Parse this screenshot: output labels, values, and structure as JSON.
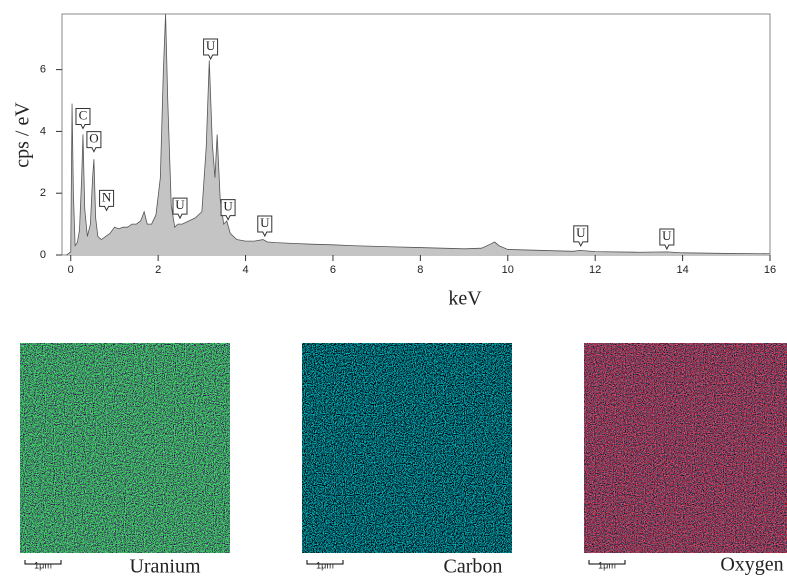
{
  "chart_data": {
    "type": "area",
    "x_label": "keV",
    "y_label": "cps / eV",
    "xlim": [
      -0.2,
      16
    ],
    "ylim": [
      0,
      7.8
    ],
    "xticks": [
      0,
      2,
      4,
      6,
      8,
      10,
      12,
      14,
      16
    ],
    "yticks": [
      0,
      2,
      4,
      6
    ],
    "color": "#c4c4c4",
    "x": [
      -0.1,
      0,
      0.03,
      0.06,
      0.1,
      0.15,
      0.2,
      0.25,
      0.28,
      0.32,
      0.38,
      0.45,
      0.5,
      0.53,
      0.57,
      0.62,
      0.7,
      0.8,
      0.9,
      1.0,
      1.1,
      1.2,
      1.3,
      1.4,
      1.5,
      1.6,
      1.68,
      1.75,
      1.85,
      1.95,
      2.05,
      2.12,
      2.17,
      2.22,
      2.3,
      2.38,
      2.45,
      2.55,
      2.7,
      2.85,
      3.0,
      3.1,
      3.17,
      3.24,
      3.3,
      3.35,
      3.42,
      3.5,
      3.57,
      3.65,
      3.8,
      4.0,
      4.2,
      4.4,
      4.5,
      4.7,
      5,
      5.5,
      6,
      6.5,
      7,
      7.5,
      8,
      8.5,
      9,
      9.4,
      9.6,
      9.7,
      9.8,
      10,
      10.5,
      11,
      11.5,
      11.65,
      12,
      13,
      13.65,
      14,
      15,
      16
    ],
    "values": [
      0,
      0.1,
      4.9,
      2.0,
      0.3,
      0.4,
      0.8,
      2.5,
      3.9,
      1.5,
      0.6,
      1.0,
      2.5,
      3.1,
      1.2,
      0.6,
      0.5,
      0.6,
      0.7,
      0.9,
      0.85,
      0.9,
      0.9,
      1.0,
      1.0,
      1.1,
      1.4,
      1.0,
      1.0,
      1.3,
      2.5,
      6.0,
      7.8,
      5.0,
      1.6,
      0.9,
      1.0,
      1.0,
      1.1,
      1.2,
      1.4,
      3.5,
      6.3,
      3.6,
      2.5,
      3.9,
      1.8,
      1.0,
      1.1,
      0.7,
      0.5,
      0.45,
      0.45,
      0.5,
      0.42,
      0.4,
      0.38,
      0.35,
      0.33,
      0.3,
      0.28,
      0.26,
      0.24,
      0.22,
      0.2,
      0.22,
      0.35,
      0.42,
      0.3,
      0.18,
      0.16,
      0.14,
      0.12,
      0.15,
      0.11,
      0.09,
      0.1,
      0.07,
      0.05,
      0.04
    ],
    "annotations": [
      {
        "text": "C",
        "x": 0.28,
        "y": 4.45
      },
      {
        "text": "O",
        "x": 0.53,
        "y": 3.7
      },
      {
        "text": "N",
        "x": 0.82,
        "y": 1.8
      },
      {
        "text": "U",
        "x": 3.2,
        "y": 6.7
      },
      {
        "text": "U",
        "x": 2.5,
        "y": 1.55
      },
      {
        "text": "U",
        "x": 3.6,
        "y": 1.5
      },
      {
        "text": "U",
        "x": 4.44,
        "y": 0.97
      },
      {
        "text": "U",
        "x": 11.67,
        "y": 0.65
      },
      {
        "text": "U",
        "x": 13.64,
        "y": 0.55
      }
    ]
  },
  "maps": [
    {
      "element": "Uranium",
      "scale": "1μm"
    },
    {
      "element": "Carbon",
      "scale": "1μm"
    },
    {
      "element": "Oxygen",
      "scale": "1μm"
    }
  ]
}
